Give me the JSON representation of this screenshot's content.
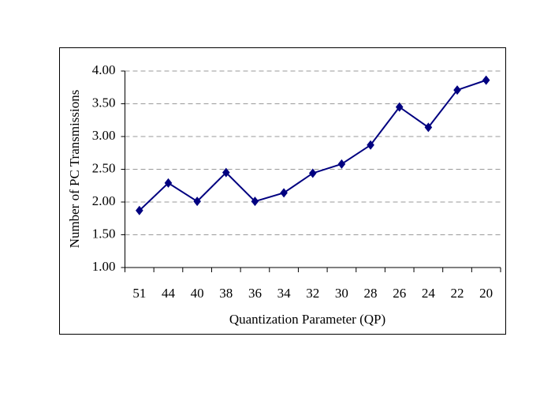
{
  "chart_data": {
    "type": "line",
    "xlabel": "Quantization Parameter (QP)",
    "ylabel": "Number of PC Transmissions",
    "categories": [
      "51",
      "44",
      "40",
      "38",
      "36",
      "34",
      "32",
      "30",
      "28",
      "26",
      "24",
      "22",
      "20"
    ],
    "series": [
      {
        "color": "#000080",
        "values": [
          1.87,
          2.29,
          2.01,
          2.45,
          2.01,
          2.14,
          2.44,
          2.58,
          2.87,
          3.45,
          3.14,
          3.71,
          3.86
        ]
      }
    ],
    "ylim": [
      1,
      4
    ],
    "yticks": [
      {
        "value": 1,
        "label": "1.00"
      },
      {
        "value": 1.5,
        "label": "1.50"
      },
      {
        "value": 2,
        "label": "2.00"
      },
      {
        "value": 2.5,
        "label": "2.50"
      },
      {
        "value": 3,
        "label": "3.00"
      },
      {
        "value": 3.5,
        "label": "3.50"
      },
      {
        "value": 4,
        "label": "4.00"
      }
    ],
    "grid": true
  }
}
